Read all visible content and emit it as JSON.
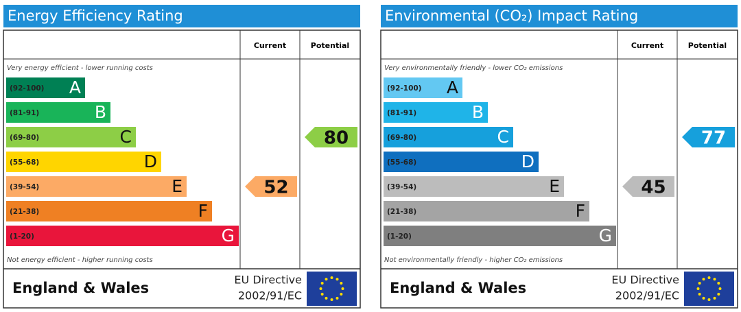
{
  "chart_data": [
    {
      "type": "rating",
      "title": "Energy Efficiency Rating",
      "columns": [
        "Current",
        "Potential"
      ],
      "top_note": "Very energy efficient - lower running costs",
      "bottom_note": "Not energy efficient - higher running costs",
      "categories": [
        "(92-100)",
        "(81-91)",
        "(69-80)",
        "(55-68)",
        "(39-54)",
        "(21-38)",
        "(1-20)"
      ],
      "letters": [
        "A",
        "B",
        "C",
        "D",
        "E",
        "F",
        "G"
      ],
      "colors": [
        "#008054",
        "#19b459",
        "#8dce46",
        "#ffd500",
        "#fcaa65",
        "#ef8023",
        "#e9153b"
      ],
      "current": 52,
      "potential": 80,
      "region": "England & Wales",
      "directive": [
        "EU Directive",
        "2002/91/EC"
      ]
    },
    {
      "type": "rating",
      "title": "Environmental (CO₂) Impact Rating",
      "columns": [
        "Current",
        "Potential"
      ],
      "top_note": "Very environmentally friendly - lower CO₂ emissions",
      "bottom_note": "Not environmentally friendly - higher CO₂ emissions",
      "categories": [
        "(92-100)",
        "(81-91)",
        "(69-80)",
        "(55-68)",
        "(39-54)",
        "(21-38)",
        "(1-20)"
      ],
      "letters": [
        "A",
        "B",
        "C",
        "D",
        "E",
        "F",
        "G"
      ],
      "colors": [
        "#63c8f2",
        "#1fb4e8",
        "#16a0dc",
        "#0f6fbf",
        "#bcbcbc",
        "#a4a4a4",
        "#7f7f7f"
      ],
      "current": 45,
      "potential": 77,
      "region": "England & Wales",
      "directive": [
        "EU Directive",
        "2002/91/EC"
      ]
    }
  ]
}
